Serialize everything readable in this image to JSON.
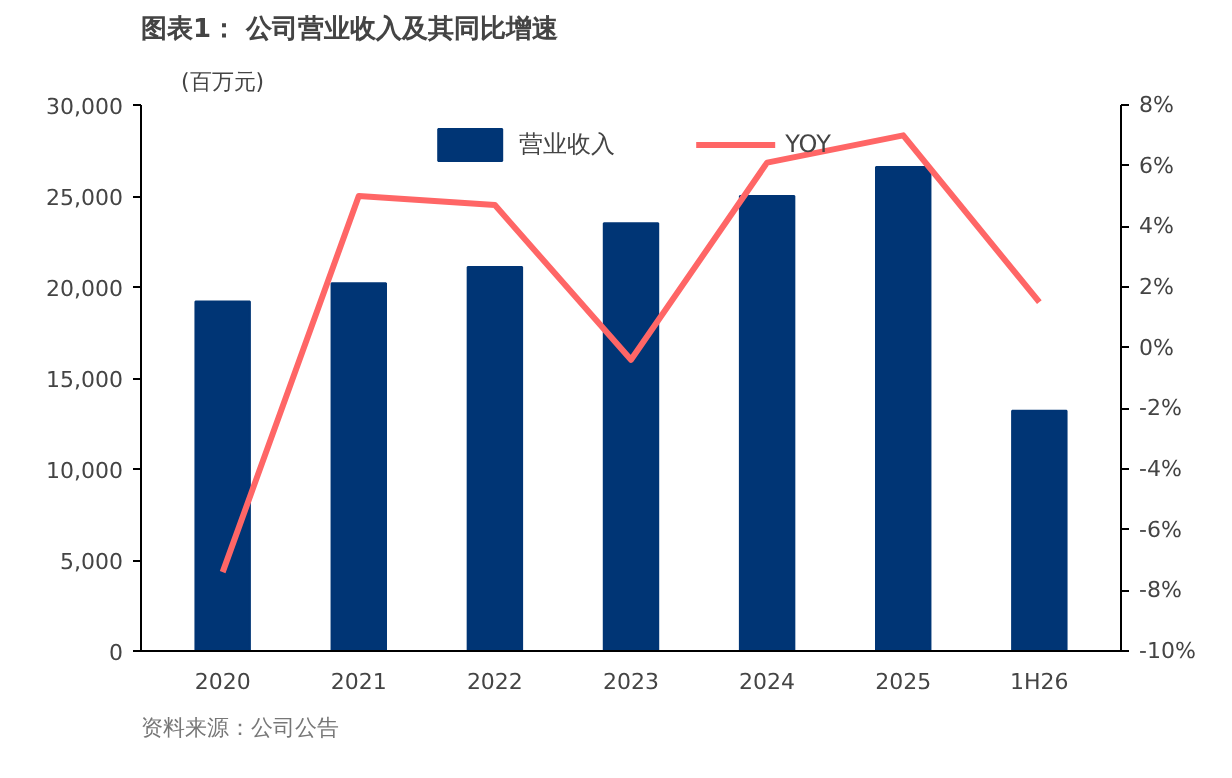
{
  "chart_data": {
    "type": "bar",
    "title": "图表1：  公司营业收入及其同比增速",
    "ylabel": "(百万元)",
    "categories": [
      "2020",
      "2021",
      "2022",
      "2023",
      "2024",
      "2025",
      "1H26"
    ],
    "series": [
      {
        "name": "营业收入",
        "color": "#003575",
        "values": [
          19200,
          20200,
          21100,
          23500,
          25000,
          26600,
          13200
        ]
      },
      {
        "name": "YOY",
        "type": "line",
        "color": "#ff6666",
        "axis": "y2",
        "values": [
          -7.4,
          5.0,
          4.7,
          -0.4,
          6.1,
          7.0,
          1.5
        ]
      }
    ],
    "ylim": [
      0,
      30000
    ],
    "yticks": [
      {
        "value": 0,
        "label": "0"
      },
      {
        "value": 5000,
        "label": "5,000"
      },
      {
        "value": 10000,
        "label": "10,000"
      },
      {
        "value": 15000,
        "label": "15,000"
      },
      {
        "value": 20000,
        "label": "20,000"
      },
      {
        "value": 25000,
        "label": "25,000"
      },
      {
        "value": 30000,
        "label": "30,000"
      }
    ],
    "y2lim": [
      -10,
      8
    ],
    "y2ticks": [
      {
        "value": -10,
        "label": "-10%"
      },
      {
        "value": -8,
        "label": "-8%"
      },
      {
        "value": -6,
        "label": "-6%"
      },
      {
        "value": -4,
        "label": "-4%"
      },
      {
        "value": -2,
        "label": "-2%"
      },
      {
        "value": 0,
        "label": "0%"
      },
      {
        "value": 2,
        "label": "2%"
      },
      {
        "value": 4,
        "label": "4%"
      },
      {
        "value": 6,
        "label": "6%"
      },
      {
        "value": 8,
        "label": "8%"
      }
    ],
    "grid": false,
    "legend": "top",
    "marker": "none",
    "line_style": "solid",
    "annotations": [
      "资料来源：公司公告"
    ]
  }
}
